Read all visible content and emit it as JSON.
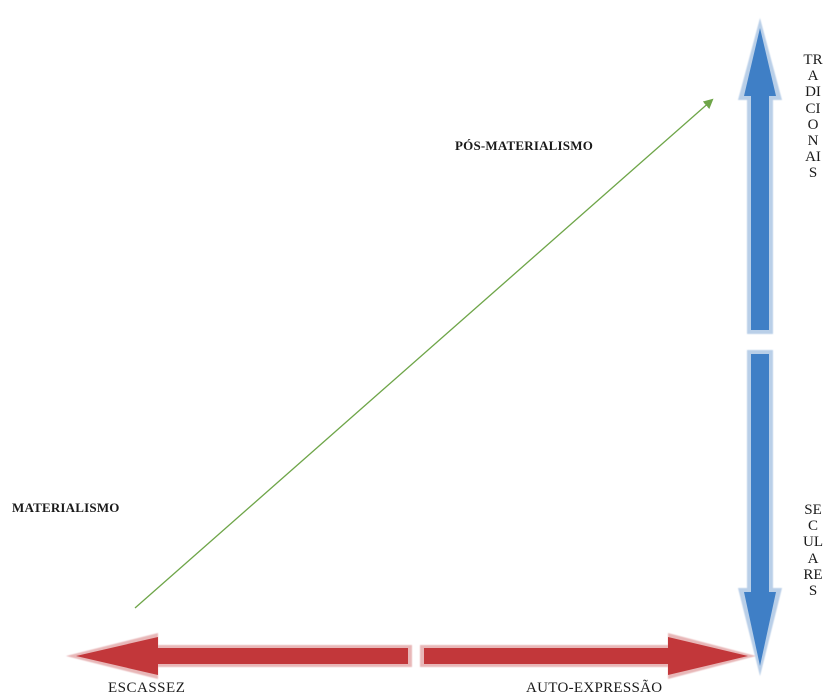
{
  "labels": {
    "pos_materialismo": "PÓS-MATERIALISMO",
    "materialismo": "MATERIALISMO",
    "escassez": "ESCASSEZ",
    "auto_expressao": "AUTO-EXPRESSÃO",
    "tradicionais": "TRADICIONAIS",
    "seculares": "SECULARES"
  },
  "colors": {
    "vertical_arrow_fill": "#3f7fc6",
    "vertical_arrow_edge": "#b9cfe8",
    "horizontal_arrow_fill": "#c2373a",
    "horizontal_arrow_edge": "#e8b7b8",
    "diagonal_arrow": "#6ea548",
    "text": "#1a1a1a"
  }
}
